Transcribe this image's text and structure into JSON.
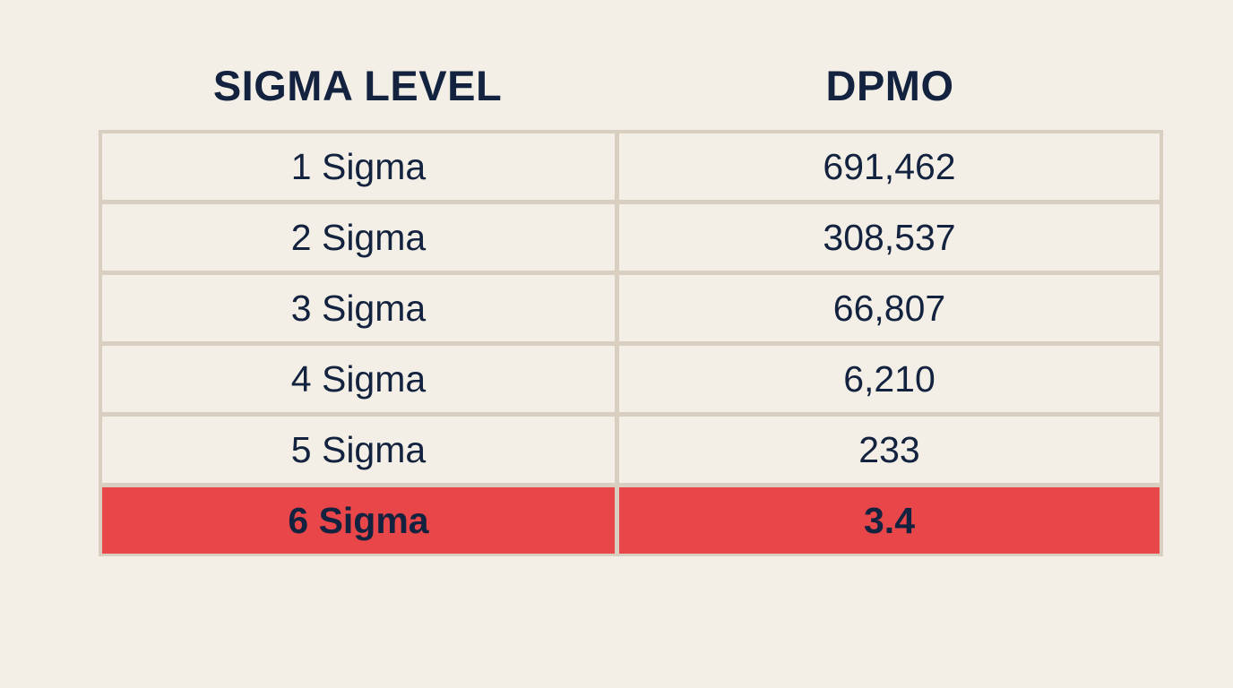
{
  "chart_data": {
    "type": "table",
    "columns": [
      "SIGMA LEVEL",
      "DPMO"
    ],
    "rows": [
      [
        "1 Sigma",
        "691,462"
      ],
      [
        "2 Sigma",
        "308,537"
      ],
      [
        "3 Sigma",
        "66,807"
      ],
      [
        "4 Sigma",
        "6,210"
      ],
      [
        "5 Sigma",
        "233"
      ],
      [
        "6 Sigma",
        "3.4"
      ]
    ],
    "highlighted_row_index": 5,
    "colors": {
      "background": "#f3efe6",
      "text": "#13233f",
      "grid": "#d8cfc0",
      "highlight": "#e84649"
    }
  }
}
